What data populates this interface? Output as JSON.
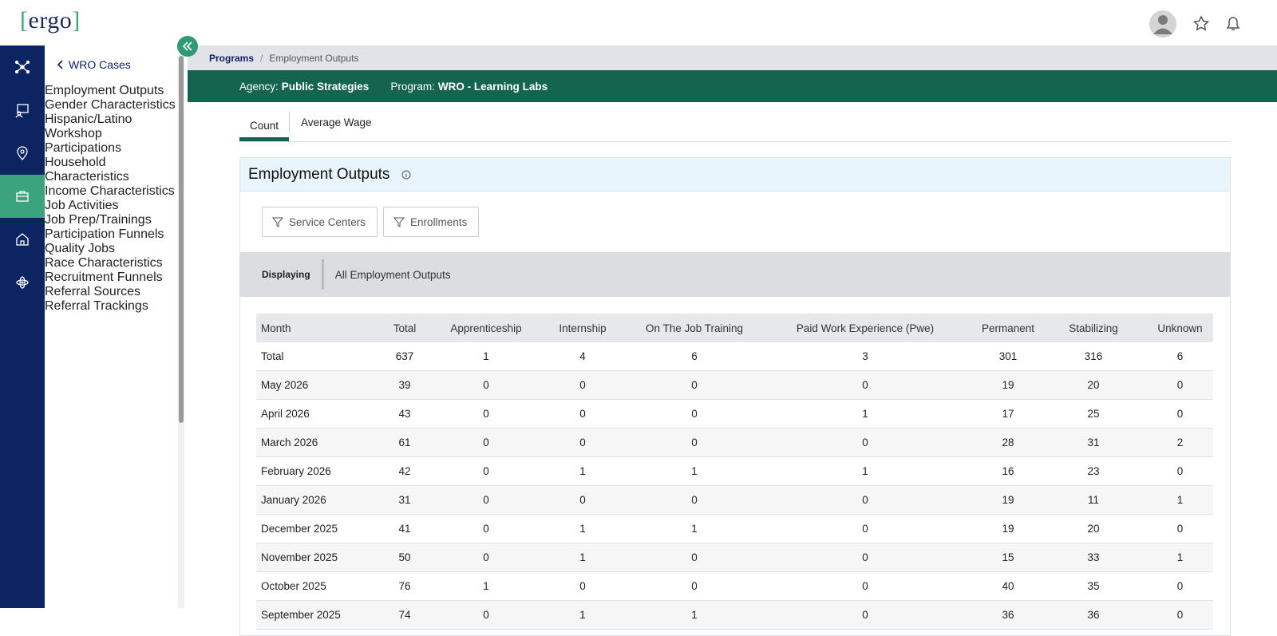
{
  "header": {
    "logo_open": "[",
    "logo": "ergo",
    "logo_close": "]"
  },
  "sidebar": {
    "back": "WRO Cases",
    "items": [
      "Employment Outputs",
      "Gender Characteristics",
      "Hispanic/Latino Workshop Participations",
      "Household Characteristics",
      "Income Characteristics",
      "Job Activities",
      "Job Prep/Trainings",
      "Participation Funnels",
      "Quality Jobs",
      "Race Characteristics",
      "Recruitment Funnels",
      "Referral Sources",
      "Referral Trackings"
    ]
  },
  "breadcrumb": {
    "items": [
      "Programs",
      "Employment Outputs"
    ],
    "separator": "/"
  },
  "banner": {
    "agency_label": "Agency:",
    "agency": "Public Strategies",
    "program_label": "Program:",
    "program": "WRO - Learning Labs"
  },
  "tabs": [
    "Count",
    "Average Wage"
  ],
  "card": {
    "title": "Employment Outputs",
    "filters": [
      "Service Centers",
      "Enrollments"
    ],
    "displaying_label": "Displaying",
    "displaying_value": "All Employment Outputs"
  },
  "table": {
    "columns": [
      "Month",
      "Total",
      "Apprenticeship",
      "Internship",
      "On The Job Training",
      "Paid Work Experience (Pwe)",
      "Permanent",
      "Stabilizing",
      "Unknown"
    ],
    "rows": [
      [
        "Total",
        637,
        1,
        4,
        6,
        3,
        301,
        316,
        6
      ],
      [
        "May 2026",
        39,
        0,
        0,
        0,
        0,
        19,
        20,
        0
      ],
      [
        "April 2026",
        43,
        0,
        0,
        0,
        1,
        17,
        25,
        0
      ],
      [
        "March 2026",
        61,
        0,
        0,
        0,
        0,
        28,
        31,
        2
      ],
      [
        "February 2026",
        42,
        0,
        1,
        1,
        1,
        16,
        23,
        0
      ],
      [
        "January 2026",
        31,
        0,
        0,
        0,
        0,
        19,
        11,
        1
      ],
      [
        "December 2025",
        41,
        0,
        1,
        1,
        0,
        19,
        20,
        0
      ],
      [
        "November 2025",
        50,
        0,
        1,
        0,
        0,
        15,
        33,
        1
      ],
      [
        "October 2025",
        76,
        1,
        0,
        0,
        0,
        40,
        35,
        0
      ],
      [
        "September 2025",
        74,
        0,
        1,
        1,
        0,
        36,
        36,
        0
      ]
    ]
  }
}
